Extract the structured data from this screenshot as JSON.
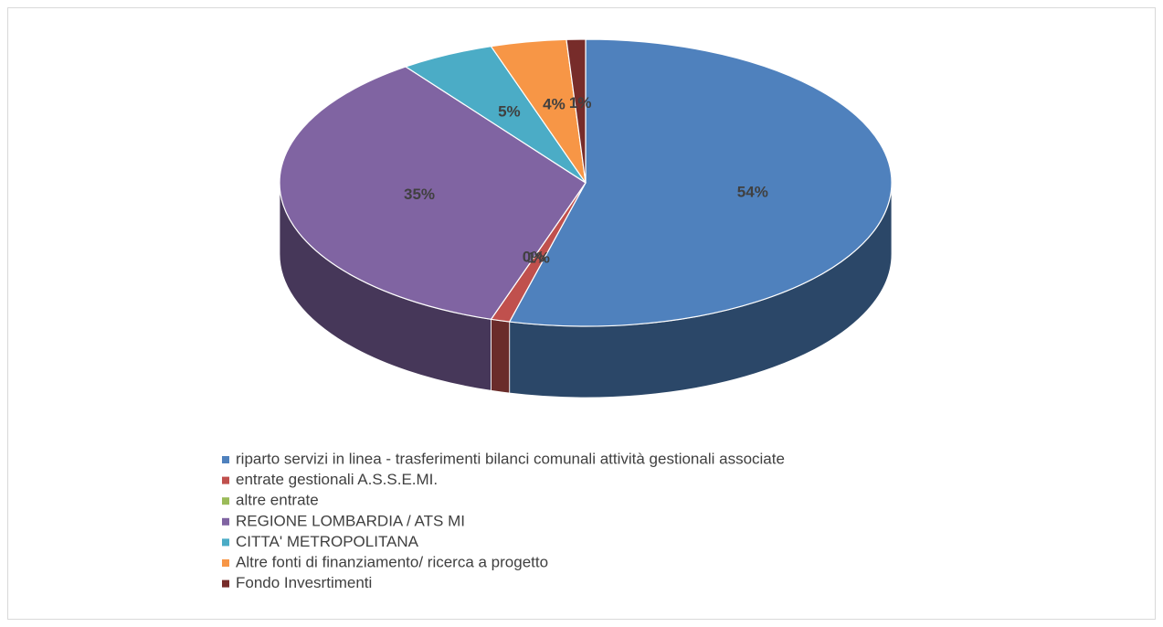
{
  "chart_data": {
    "type": "pie3d",
    "categories": [
      "riparto servizi in linea - trasferimenti bilanci comunali attività gestionali associate",
      "entrate gestionali A.S.S.E.MI.",
      "altre entrate",
      "REGIONE LOMBARDIA / ATS MI",
      "CITTA' METROPOLITANA",
      "Altre fonti di finanziamento/ ricerca a progetto",
      "Fondo Invesrtimenti"
    ],
    "values": [
      54,
      1,
      0,
      35,
      5,
      4,
      1
    ],
    "value_labels": [
      "54%",
      "1%",
      "0%",
      "35%",
      "5%",
      "4%",
      "1%"
    ],
    "colors": [
      "#4f81bd",
      "#c0504d",
      "#9bbb59",
      "#8064a2",
      "#4bacc6",
      "#f79646",
      "#772c2a"
    ],
    "legend": "bottom"
  }
}
